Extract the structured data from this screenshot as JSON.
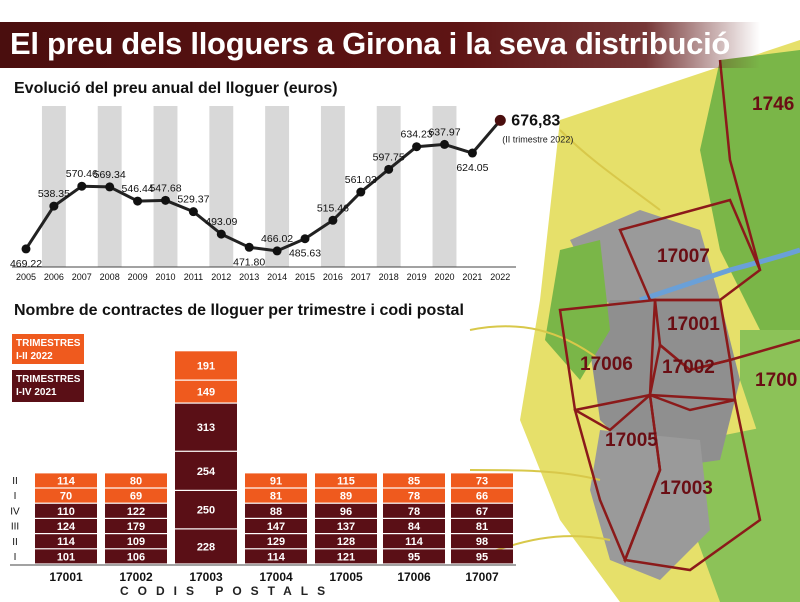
{
  "title": "El preu dels lloguers a Girona i la seva distribució",
  "colors": {
    "header": "#5e1414",
    "orange": "#ef5a1e",
    "dark": "#5a0f16",
    "grid_bar": "#d8d8d8",
    "map_green": "#7ab648",
    "map_yellow": "#e6e06a",
    "map_gray": "#9a9a9a",
    "map_border": "#8b1a1a"
  },
  "map": {
    "zones": [
      "17007",
      "17001",
      "17002",
      "17006",
      "17005",
      "17003",
      "1746",
      "1700"
    ]
  },
  "chart_data": [
    {
      "type": "line",
      "title": "Evolució del preu anual del lloguer (euros)",
      "x": [
        "2005",
        "2006",
        "2007",
        "2008",
        "2009",
        "2010",
        "2011",
        "2012",
        "2013",
        "2014",
        "2015",
        "2016",
        "2017",
        "2018",
        "2019",
        "2020",
        "2021",
        "2022"
      ],
      "values": [
        469.22,
        538.35,
        570.46,
        569.34,
        546.44,
        547.68,
        529.37,
        493.09,
        471.8,
        466.02,
        485.63,
        515.46,
        561.03,
        597.75,
        634.23,
        637.97,
        624.05,
        676.83
      ],
      "labels": [
        "469.22",
        "538.35",
        "570.46",
        "569.34",
        "546.44",
        "547.68",
        "529.37",
        "493.09",
        "471.80",
        "466.02",
        "485.63",
        "515.46",
        "561.03",
        "597.75",
        "634.23",
        "637.97",
        "624.05",
        "676,83"
      ],
      "last_note": "(II trimestre 2022)",
      "ylim": [
        440,
        700
      ],
      "grid": false
    },
    {
      "type": "bar",
      "stacked": true,
      "title": "Nombre de contractes de lloguer per trimestre i codi postal",
      "xlabel": "CODIS POSTALS",
      "categories": [
        "17001",
        "17002",
        "17003",
        "17004",
        "17005",
        "17006",
        "17007"
      ],
      "row_labels": [
        "I",
        "II",
        "III",
        "IV",
        "I",
        "II"
      ],
      "legend": [
        {
          "lines": [
            "TRIMESTRES",
            "I-II 2022"
          ],
          "color": "#ef5a1e"
        },
        {
          "lines": [
            "TRIMESTRES",
            "I-IV 2021"
          ],
          "color": "#5a0f16"
        }
      ],
      "series": [
        {
          "group": "2021",
          "quarter": "I",
          "values": [
            101,
            106,
            228,
            114,
            121,
            95,
            95
          ]
        },
        {
          "group": "2021",
          "quarter": "II",
          "values": [
            114,
            109,
            250,
            129,
            128,
            114,
            98
          ]
        },
        {
          "group": "2021",
          "quarter": "III",
          "values": [
            124,
            179,
            254,
            147,
            137,
            84,
            81
          ]
        },
        {
          "group": "2021",
          "quarter": "IV",
          "values": [
            110,
            122,
            313,
            88,
            96,
            78,
            67
          ]
        },
        {
          "group": "2022",
          "quarter": "I",
          "values": [
            70,
            69,
            149,
            81,
            89,
            78,
            66
          ]
        },
        {
          "group": "2022",
          "quarter": "II",
          "values": [
            114,
            80,
            191,
            91,
            115,
            85,
            73
          ]
        }
      ]
    }
  ]
}
